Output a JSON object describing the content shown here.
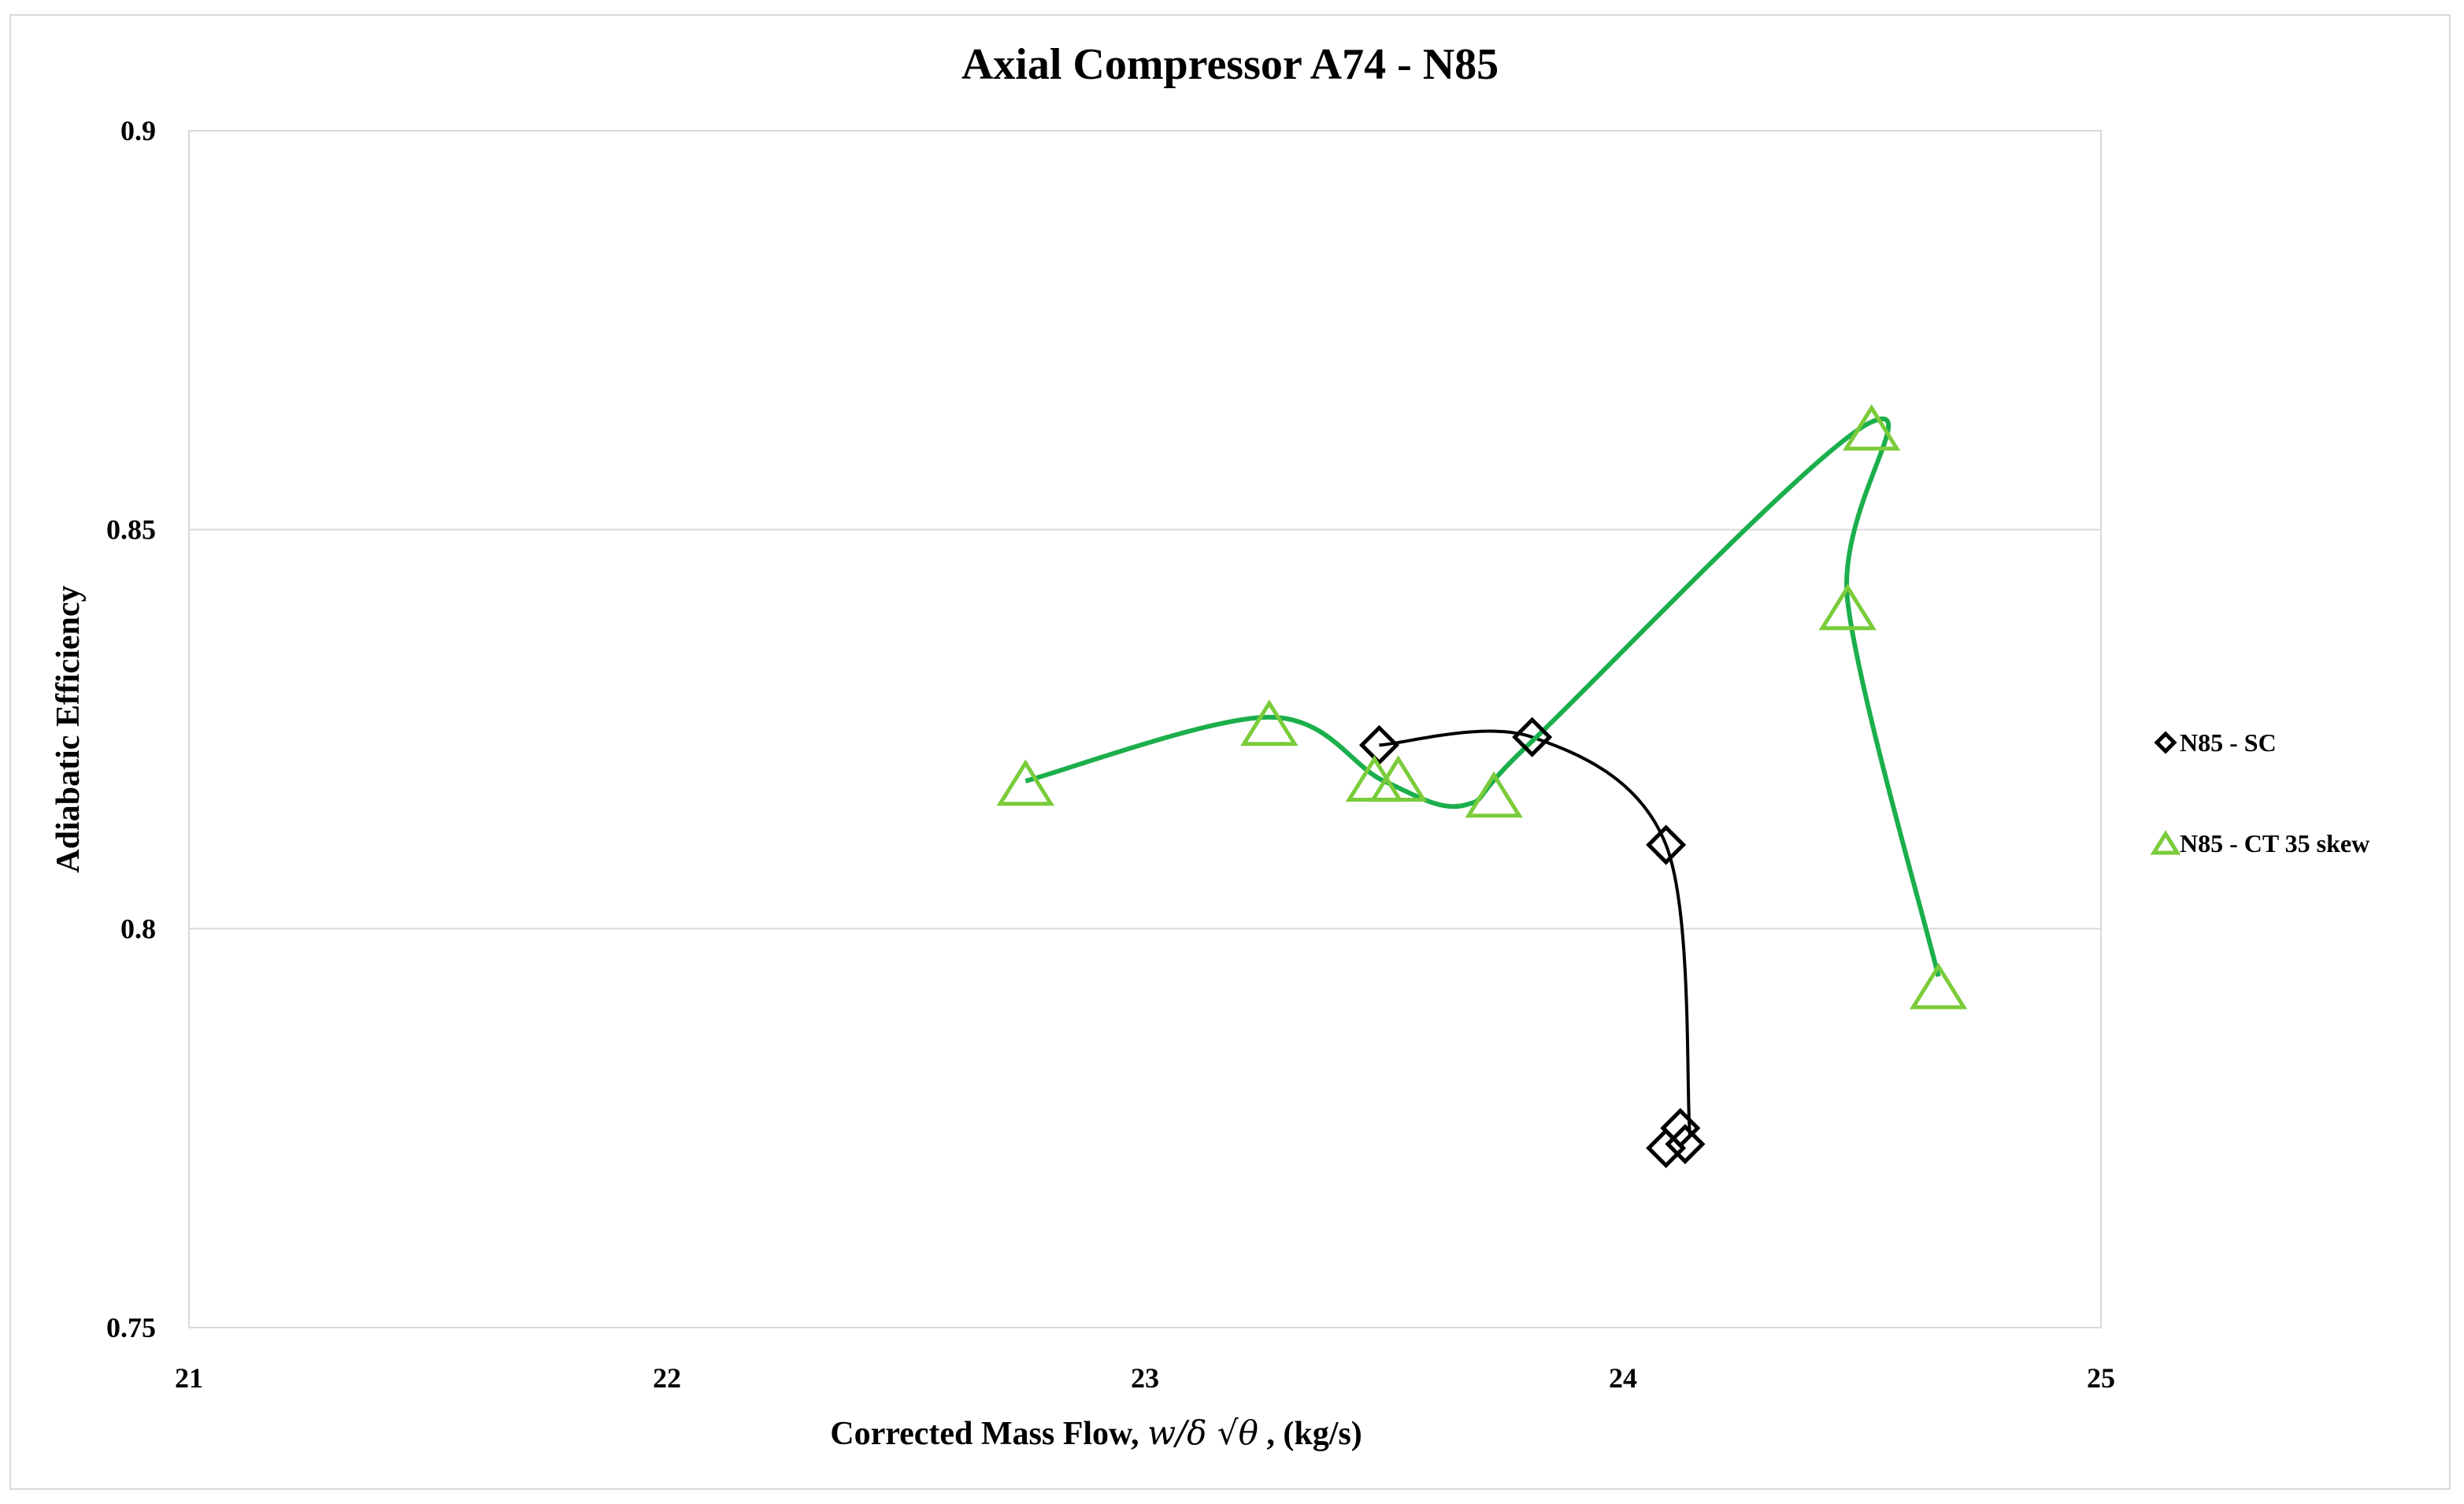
{
  "chart_data": {
    "type": "scatter",
    "title": "Axial Compressor A74 - N85",
    "xlabel": "Corrected Mass Flow, w/δ √θ , (kg/s)",
    "xlabel_parts": {
      "prefix": "Corrected Mass Flow, ",
      "var": "w/δ √θ",
      "suffix": " , (kg/s)"
    },
    "ylabel": "Adiabatic Efficiency",
    "xlim": [
      21,
      25
    ],
    "ylim": [
      0.75,
      0.9
    ],
    "x_ticks": [
      "21",
      "22",
      "23",
      "24",
      "25"
    ],
    "y_ticks": [
      "0.75",
      "0.8",
      "0.85",
      "0.9"
    ],
    "grid": "horizontal",
    "legend_position": "right",
    "series": [
      {
        "name": "N85 - SC",
        "marker": "diamond",
        "color": "#000000",
        "points": [
          {
            "x": 23.49,
            "y": 0.823
          },
          {
            "x": 23.81,
            "y": 0.824
          },
          {
            "x": 24.09,
            "y": 0.8105
          },
          {
            "x": 24.12,
            "y": 0.775
          },
          {
            "x": 24.13,
            "y": 0.773
          },
          {
            "x": 24.09,
            "y": 0.7725
          }
        ],
        "curve": [
          {
            "x": 23.49,
            "y": 0.823
          },
          {
            "x": 23.81,
            "y": 0.824
          },
          {
            "x": 24.09,
            "y": 0.8105
          },
          {
            "x": 24.14,
            "y": 0.774
          }
        ]
      },
      {
        "name": "N85 - CT 35 skew",
        "marker": "triangle",
        "color": "#7ACC3A",
        "line_color": "#1BAF4C",
        "points": [
          {
            "x": 22.75,
            "y": 0.818
          },
          {
            "x": 23.26,
            "y": 0.8255
          },
          {
            "x": 23.48,
            "y": 0.8185
          },
          {
            "x": 23.53,
            "y": 0.8185
          },
          {
            "x": 23.73,
            "y": 0.8165
          },
          {
            "x": 24.52,
            "y": 0.8625
          },
          {
            "x": 24.47,
            "y": 0.84
          },
          {
            "x": 24.66,
            "y": 0.7925
          }
        ],
        "curve": [
          {
            "x": 22.75,
            "y": 0.8185
          },
          {
            "x": 23.26,
            "y": 0.8265
          },
          {
            "x": 23.5,
            "y": 0.8185
          },
          {
            "x": 23.67,
            "y": 0.8155
          },
          {
            "x": 23.81,
            "y": 0.8235
          },
          {
            "x": 24.52,
            "y": 0.8635
          },
          {
            "x": 24.47,
            "y": 0.841
          },
          {
            "x": 24.66,
            "y": 0.794
          }
        ]
      }
    ]
  }
}
